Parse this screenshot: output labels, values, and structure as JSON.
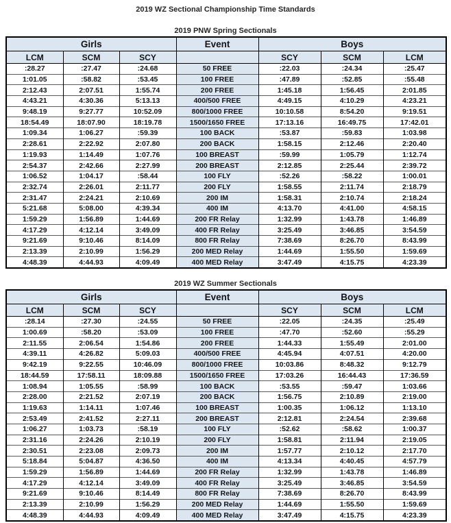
{
  "page_title": "2019 WZ Sectional Championship Time Standards",
  "colors": {
    "header_bg": "#dce6f1",
    "border_dark": "#000000",
    "border_row": "#595959",
    "text": "#111418"
  },
  "tables": [
    {
      "caption": "2019 PNW Spring Sectionals",
      "header": {
        "girls": "Girls",
        "event": "Event",
        "boys": "Boys"
      },
      "girls_courses": [
        "LCM",
        "SCM",
        "SCY"
      ],
      "boys_courses": [
        "SCY",
        "SCM",
        "LCM"
      ],
      "rows": [
        {
          "event": "50 FREE",
          "girls": [
            ":28.27",
            ":27.47",
            ":24.68"
          ],
          "boys": [
            ":22.03",
            ":24.34",
            ":25.47"
          ]
        },
        {
          "event": "100 FREE",
          "girls": [
            "1:01.05",
            ":58.82",
            ":53.45"
          ],
          "boys": [
            ":47.89",
            ":52.85",
            ":55.48"
          ]
        },
        {
          "event": "200 FREE",
          "girls": [
            "2:12.43",
            "2:07.51",
            "1:55.74"
          ],
          "boys": [
            "1:45.18",
            "1:56.45",
            "2:01.85"
          ]
        },
        {
          "event": "400/500 FREE",
          "girls": [
            "4:43.21",
            "4:30.36",
            "5:13.13"
          ],
          "boys": [
            "4:49.15",
            "4:10.29",
            "4:23.21"
          ]
        },
        {
          "event": "800/1000 FREE",
          "girls": [
            "9:48.19",
            "9:27.77",
            "10:52.09"
          ],
          "boys": [
            "10:10.58",
            "8:54.20",
            "9:19.51"
          ]
        },
        {
          "event": "1500/1650 FREE",
          "girls": [
            "18:54.49",
            "18:07.90",
            "18:19.78"
          ],
          "boys": [
            "17:13.16",
            "16:49.75",
            "17:42.01"
          ]
        },
        {
          "event": "100 BACK",
          "girls": [
            "1:09.34",
            "1:06.27",
            ":59.39"
          ],
          "boys": [
            ":53.87",
            ":59.83",
            "1:03.98"
          ]
        },
        {
          "event": "200 BACK",
          "girls": [
            "2:28.61",
            "2:22.92",
            "2:07.80"
          ],
          "boys": [
            "1:58.15",
            "2:12.46",
            "2:20.40"
          ]
        },
        {
          "event": "100 BREAST",
          "girls": [
            "1:19.93",
            "1:14.49",
            "1:07.76"
          ],
          "boys": [
            ":59.99",
            "1:05.79",
            "1:12.74"
          ]
        },
        {
          "event": "200 BREAST",
          "girls": [
            "2:54.37",
            "2:42.66",
            "2:27.99"
          ],
          "boys": [
            "2:12.85",
            "2:25.44",
            "2:39.72"
          ]
        },
        {
          "event": "100 FLY",
          "girls": [
            "1:06.52",
            "1:04.17",
            ":58.44"
          ],
          "boys": [
            ":52.26",
            ":58.22",
            "1:00.01"
          ]
        },
        {
          "event": "200 FLY",
          "girls": [
            "2:32.74",
            "2:26.01",
            "2:11.77"
          ],
          "boys": [
            "1:58.55",
            "2:11.74",
            "2:18.79"
          ]
        },
        {
          "event": "200 IM",
          "girls": [
            "2:31.47",
            "2:24.21",
            "2:10.69"
          ],
          "boys": [
            "1:58.31",
            "2:10.74",
            "2:18.24"
          ]
        },
        {
          "event": "400 IM",
          "girls": [
            "5:21.68",
            "5:08.00",
            "4:39.34"
          ],
          "boys": [
            "4:13.70",
            "4:41.00",
            "4:58.15"
          ]
        },
        {
          "event": "200 FR Relay",
          "girls": [
            "1:59.29",
            "1:56.89",
            "1:44.69"
          ],
          "boys": [
            "1:32.99",
            "1:43.78",
            "1:46.89"
          ]
        },
        {
          "event": "400 FR Relay",
          "girls": [
            "4:17.29",
            "4:12.14",
            "3:49.09"
          ],
          "boys": [
            "3:25.49",
            "3:46.85",
            "3:54.59"
          ]
        },
        {
          "event": "800 FR Relay",
          "girls": [
            "9:21.69",
            "9:10.46",
            "8:14.09"
          ],
          "boys": [
            "7:38.69",
            "8:26.70",
            "8:43.99"
          ]
        },
        {
          "event": "200 MED Relay",
          "girls": [
            "2:13.39",
            "2:10.99",
            "1:56.29"
          ],
          "boys": [
            "1:44.69",
            "1:55.50",
            "1:59.69"
          ]
        },
        {
          "event": "400 MED Relay",
          "girls": [
            "4:48.39",
            "4:44.93",
            "4:09.49"
          ],
          "boys": [
            "3:47.49",
            "4:15.75",
            "4:23.39"
          ]
        }
      ]
    },
    {
      "caption": "2019 WZ Summer Sectionals",
      "header": {
        "girls": "Girls",
        "event": "Event",
        "boys": "Boys"
      },
      "girls_courses": [
        "LCM",
        "SCM",
        "SCY"
      ],
      "boys_courses": [
        "SCY",
        "SCM",
        "LCM"
      ],
      "rows": [
        {
          "event": "50 FREE",
          "girls": [
            ":28.14",
            ":27.30",
            ":24.55"
          ],
          "boys": [
            ":22.05",
            ":24.35",
            ":25.49"
          ]
        },
        {
          "event": "100 FREE",
          "girls": [
            "1:00.69",
            ":58.20",
            ":53.09"
          ],
          "boys": [
            ":47.70",
            ":52.60",
            ":55.29"
          ]
        },
        {
          "event": "200 FREE",
          "girls": [
            "2:11.55",
            "2:06.54",
            "1:54.86"
          ],
          "boys": [
            "1:44.33",
            "1:55.49",
            "2:01.00"
          ]
        },
        {
          "event": "400/500 FREE",
          "girls": [
            "4:39.11",
            "4:26.82",
            "5:09.03"
          ],
          "boys": [
            "4:45.94",
            "4:07.51",
            "4:20.00"
          ]
        },
        {
          "event": "800/1000 FREE",
          "girls": [
            "9:42.19",
            "9:22.55",
            "10:46.09"
          ],
          "boys": [
            "10:03.86",
            "8:48.32",
            "9:12.79"
          ]
        },
        {
          "event": "1500/1650 FREE",
          "girls": [
            "18:44.59",
            "17:58.11",
            "18:09.88"
          ],
          "boys": [
            "17:03.26",
            "16:44.43",
            "17:36.59"
          ]
        },
        {
          "event": "100 BACK",
          "girls": [
            "1:08.94",
            "1:05.55",
            ":58.99"
          ],
          "boys": [
            ":53.55",
            ":59.47",
            "1:03.66"
          ]
        },
        {
          "event": "200 BACK",
          "girls": [
            "2:28.00",
            "2:21.52",
            "2:07.19"
          ],
          "boys": [
            "1:56.75",
            "2:10.89",
            "2:19.00"
          ]
        },
        {
          "event": "100 BREAST",
          "girls": [
            "1:19.63",
            "1:14.11",
            "1:07.46"
          ],
          "boys": [
            "1:00.35",
            "1:06.12",
            "1:13.10"
          ]
        },
        {
          "event": "200 BREAST",
          "girls": [
            "2:53.49",
            "2:41.52",
            "2:27.11"
          ],
          "boys": [
            "2:12.81",
            "2:24.54",
            "2:39.68"
          ]
        },
        {
          "event": "100 FLY",
          "girls": [
            "1:06.27",
            "1:03.73",
            ":58.19"
          ],
          "boys": [
            ":52.62",
            ":58.62",
            "1:00.37"
          ]
        },
        {
          "event": "200 FLY",
          "girls": [
            "2:31.16",
            "2:24.26",
            "2:10.19"
          ],
          "boys": [
            "1:58.81",
            "2:11.94",
            "2:19.05"
          ]
        },
        {
          "event": "200 IM",
          "girls": [
            "2:30.51",
            "2:23.08",
            "2:09.73"
          ],
          "boys": [
            "1:57.77",
            "2:10.12",
            "2:17.70"
          ]
        },
        {
          "event": "400 IM",
          "girls": [
            "5:18.84",
            "5:04.87",
            "4:36.50"
          ],
          "boys": [
            "4:13.34",
            "4:40.45",
            "4:57.79"
          ]
        },
        {
          "event": "200 FR Relay",
          "girls": [
            "1:59.29",
            "1:56.89",
            "1:44.69"
          ],
          "boys": [
            "1:32.99",
            "1:43.78",
            "1:46.89"
          ]
        },
        {
          "event": "400 FR Relay",
          "girls": [
            "4:17.29",
            "4:12.14",
            "3:49.09"
          ],
          "boys": [
            "3:25.49",
            "3:46.85",
            "3:54.59"
          ]
        },
        {
          "event": "800 FR Relay",
          "girls": [
            "9:21.69",
            "9:10.46",
            "8:14.49"
          ],
          "boys": [
            "7:38.69",
            "8:26.70",
            "8:43.99"
          ]
        },
        {
          "event": "200 MED Relay",
          "girls": [
            "2:13.39",
            "2:10.99",
            "1:56.29"
          ],
          "boys": [
            "1:44.69",
            "1:55.50",
            "1:59.69"
          ]
        },
        {
          "event": "400 MED Relay",
          "girls": [
            "4:48.39",
            "4:44.93",
            "4:09.49"
          ],
          "boys": [
            "3:47.49",
            "4:15.75",
            "4:23.39"
          ]
        }
      ]
    }
  ]
}
